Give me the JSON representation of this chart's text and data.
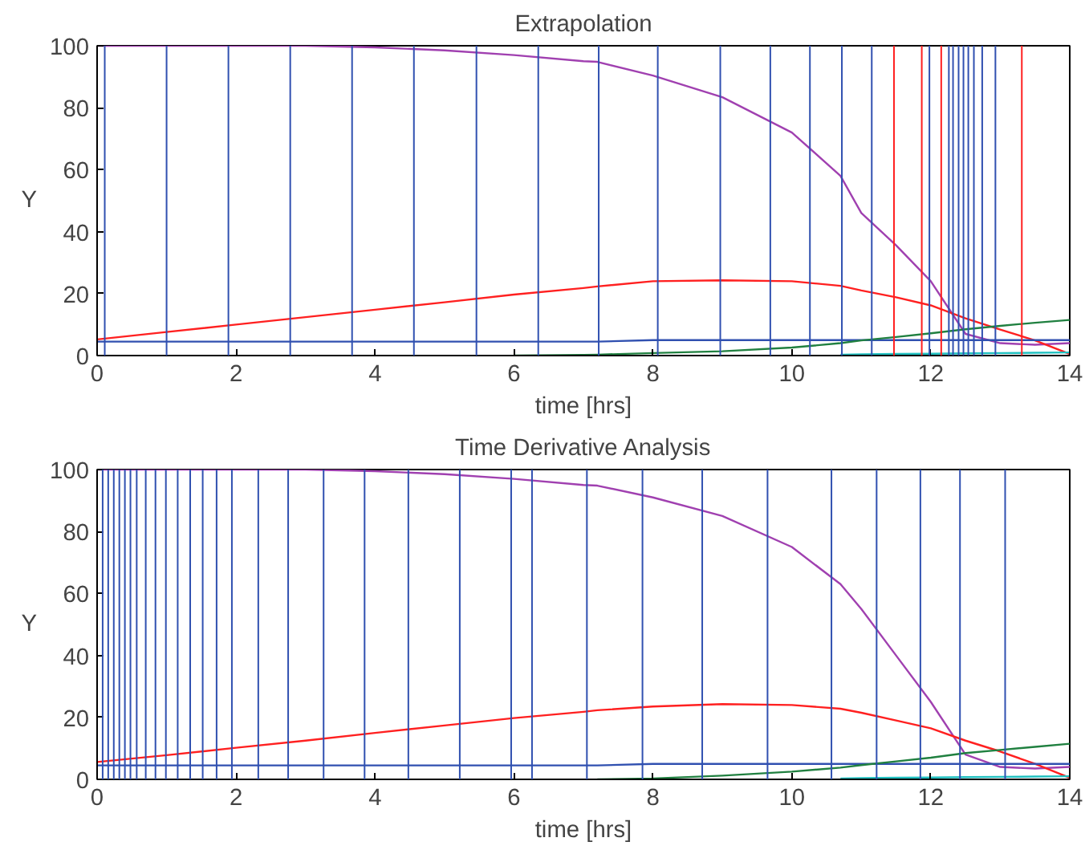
{
  "chart_data": [
    {
      "type": "line",
      "title": "Extrapolation",
      "xlabel": "time [hrs]",
      "ylabel": "Y",
      "xlim": [
        0,
        14
      ],
      "ylim": [
        0,
        100
      ],
      "xticks": [
        0,
        2,
        4,
        6,
        8,
        10,
        12,
        14
      ],
      "yticks": [
        0,
        20,
        40,
        60,
        80,
        100
      ],
      "x": [
        0,
        1,
        2,
        3,
        4,
        5,
        6,
        7,
        7.2,
        8,
        9,
        10,
        10.7,
        11,
        11.5,
        12,
        12.5,
        13,
        13.5,
        14
      ],
      "series": [
        {
          "color": "#a040b0",
          "values": [
            100,
            100,
            100,
            100,
            99.5,
            98.5,
            97,
            95,
            94.8,
            90.4,
            83.4,
            72,
            58,
            46,
            35.6,
            24,
            7,
            4,
            3.5,
            4
          ]
        },
        {
          "color": "#ff2020",
          "values": [
            5.2,
            7.6,
            10,
            12.4,
            14.8,
            17.2,
            19.7,
            21.8,
            22.3,
            24,
            24.3,
            24,
            22.5,
            21,
            18.8,
            16.2,
            12,
            8.4,
            4.9,
            0.5
          ]
        },
        {
          "color": "#3050b0",
          "values": [
            4.5,
            4.5,
            4.5,
            4.5,
            4.5,
            4.5,
            4.5,
            4.5,
            4.5,
            5,
            5,
            5,
            5,
            5,
            5,
            5,
            5,
            5,
            5,
            5
          ]
        },
        {
          "color": "#208040",
          "values": [
            null,
            null,
            null,
            null,
            null,
            null,
            0,
            0.2,
            0.3,
            0.8,
            1.4,
            2.6,
            4,
            4.9,
            6,
            7.2,
            8.5,
            9.6,
            10.6,
            11.5
          ]
        },
        {
          "color": "#20c0c0",
          "values": [
            null,
            null,
            null,
            null,
            null,
            null,
            null,
            null,
            null,
            null,
            null,
            null,
            0.3,
            0.4,
            0.5,
            0.6,
            0.7,
            0.8,
            0.9,
            1
          ]
        }
      ],
      "ref_lines": [
        {
          "axis": "x",
          "value": 0.11,
          "color": "#3050b0"
        },
        {
          "axis": "x",
          "value": 1.0,
          "color": "#3050b0"
        },
        {
          "axis": "x",
          "value": 1.89,
          "color": "#3050b0"
        },
        {
          "axis": "x",
          "value": 2.78,
          "color": "#3050b0"
        },
        {
          "axis": "x",
          "value": 3.67,
          "color": "#3050b0"
        },
        {
          "axis": "x",
          "value": 4.56,
          "color": "#3050b0"
        },
        {
          "axis": "x",
          "value": 5.46,
          "color": "#3050b0"
        },
        {
          "axis": "x",
          "value": 6.35,
          "color": "#3050b0"
        },
        {
          "axis": "x",
          "value": 7.22,
          "color": "#3050b0"
        },
        {
          "axis": "x",
          "value": 8.07,
          "color": "#3050b0"
        },
        {
          "axis": "x",
          "value": 8.97,
          "color": "#3050b0"
        },
        {
          "axis": "x",
          "value": 9.69,
          "color": "#3050b0"
        },
        {
          "axis": "x",
          "value": 10.26,
          "color": "#3050b0"
        },
        {
          "axis": "x",
          "value": 10.72,
          "color": "#3050b0"
        },
        {
          "axis": "x",
          "value": 11.15,
          "color": "#3050b0"
        },
        {
          "axis": "x",
          "value": 11.47,
          "color": "#ff2020"
        },
        {
          "axis": "x",
          "value": 11.87,
          "color": "#ff2020"
        },
        {
          "axis": "x",
          "value": 11.98,
          "color": "#3050b0"
        },
        {
          "axis": "x",
          "value": 12.15,
          "color": "#ff2020"
        },
        {
          "axis": "x",
          "value": 12.26,
          "color": "#3050b0"
        },
        {
          "axis": "x",
          "value": 12.32,
          "color": "#3050b0"
        },
        {
          "axis": "x",
          "value": 12.4,
          "color": "#3050b0"
        },
        {
          "axis": "x",
          "value": 12.47,
          "color": "#3050b0"
        },
        {
          "axis": "x",
          "value": 12.54,
          "color": "#3050b0"
        },
        {
          "axis": "x",
          "value": 12.62,
          "color": "#3050b0"
        },
        {
          "axis": "x",
          "value": 12.74,
          "color": "#3050b0"
        },
        {
          "axis": "x",
          "value": 12.93,
          "color": "#3050b0"
        },
        {
          "axis": "x",
          "value": 13.31,
          "color": "#ff2020"
        }
      ]
    },
    {
      "type": "line",
      "title": "Time Derivative Analysis",
      "xlabel": "time [hrs]",
      "ylabel": "Y",
      "xlim": [
        0,
        14
      ],
      "ylim": [
        0,
        100
      ],
      "xticks": [
        0,
        2,
        4,
        6,
        8,
        10,
        12,
        14
      ],
      "yticks": [
        0,
        20,
        40,
        60,
        80,
        100
      ],
      "x": [
        0,
        1,
        2,
        3,
        4,
        5,
        6,
        7,
        7.2,
        8,
        9,
        10,
        10.7,
        11,
        11.5,
        12,
        12.5,
        13,
        13.5,
        14
      ],
      "series": [
        {
          "color": "#a040b0",
          "values": [
            100,
            100,
            100,
            100,
            99.5,
            98.5,
            97,
            95,
            94.8,
            91,
            85,
            75,
            63,
            55,
            40,
            25,
            8,
            4,
            3.5,
            4
          ]
        },
        {
          "color": "#ff2020",
          "values": [
            5.6,
            7.8,
            10.2,
            12.5,
            15,
            17.4,
            19.8,
            21.8,
            22.3,
            23.5,
            24.3,
            24,
            22.8,
            21.5,
            19,
            16.5,
            12.5,
            9,
            5,
            0.5
          ]
        },
        {
          "color": "#3050b0",
          "values": [
            4.5,
            4.5,
            4.5,
            4.5,
            4.5,
            4.5,
            4.5,
            4.5,
            4.5,
            5,
            5,
            5,
            5,
            5,
            5,
            5,
            5,
            5,
            5,
            5
          ]
        },
        {
          "color": "#208040",
          "values": [
            null,
            null,
            null,
            null,
            null,
            null,
            null,
            null,
            0,
            0.3,
            1.2,
            2.5,
            3.8,
            4.6,
            5.8,
            7,
            8.5,
            9.5,
            10.5,
            11.5
          ]
        },
        {
          "color": "#20c0c0",
          "values": [
            null,
            null,
            null,
            null,
            null,
            null,
            null,
            null,
            null,
            null,
            null,
            null,
            0.3,
            0.4,
            0.5,
            0.6,
            0.7,
            0.8,
            0.9,
            1
          ]
        }
      ],
      "ref_lines": [
        {
          "axis": "x",
          "value": 0.08,
          "color": "#3050b0"
        },
        {
          "axis": "x",
          "value": 0.16,
          "color": "#3050b0"
        },
        {
          "axis": "x",
          "value": 0.24,
          "color": "#3050b0"
        },
        {
          "axis": "x",
          "value": 0.32,
          "color": "#3050b0"
        },
        {
          "axis": "x",
          "value": 0.4,
          "color": "#3050b0"
        },
        {
          "axis": "x",
          "value": 0.48,
          "color": "#3050b0"
        },
        {
          "axis": "x",
          "value": 0.57,
          "color": "#3050b0"
        },
        {
          "axis": "x",
          "value": 0.7,
          "color": "#3050b0"
        },
        {
          "axis": "x",
          "value": 0.84,
          "color": "#3050b0"
        },
        {
          "axis": "x",
          "value": 0.99,
          "color": "#3050b0"
        },
        {
          "axis": "x",
          "value": 1.16,
          "color": "#3050b0"
        },
        {
          "axis": "x",
          "value": 1.34,
          "color": "#3050b0"
        },
        {
          "axis": "x",
          "value": 1.52,
          "color": "#3050b0"
        },
        {
          "axis": "x",
          "value": 1.72,
          "color": "#3050b0"
        },
        {
          "axis": "x",
          "value": 1.94,
          "color": "#3050b0"
        },
        {
          "axis": "x",
          "value": 2.32,
          "color": "#3050b0"
        },
        {
          "axis": "x",
          "value": 2.75,
          "color": "#3050b0"
        },
        {
          "axis": "x",
          "value": 3.26,
          "color": "#3050b0"
        },
        {
          "axis": "x",
          "value": 3.85,
          "color": "#3050b0"
        },
        {
          "axis": "x",
          "value": 4.48,
          "color": "#3050b0"
        },
        {
          "axis": "x",
          "value": 5.22,
          "color": "#3050b0"
        },
        {
          "axis": "x",
          "value": 5.96,
          "color": "#3050b0"
        },
        {
          "axis": "x",
          "value": 6.26,
          "color": "#3050b0"
        },
        {
          "axis": "x",
          "value": 7.05,
          "color": "#3050b0"
        },
        {
          "axis": "x",
          "value": 7.85,
          "color": "#3050b0"
        },
        {
          "axis": "x",
          "value": 8.71,
          "color": "#3050b0"
        },
        {
          "axis": "x",
          "value": 9.65,
          "color": "#3050b0"
        },
        {
          "axis": "x",
          "value": 10.57,
          "color": "#3050b0"
        },
        {
          "axis": "x",
          "value": 11.22,
          "color": "#3050b0"
        },
        {
          "axis": "x",
          "value": 11.85,
          "color": "#3050b0"
        },
        {
          "axis": "x",
          "value": 12.42,
          "color": "#3050b0"
        },
        {
          "axis": "x",
          "value": 13.07,
          "color": "#3050b0"
        }
      ]
    }
  ]
}
